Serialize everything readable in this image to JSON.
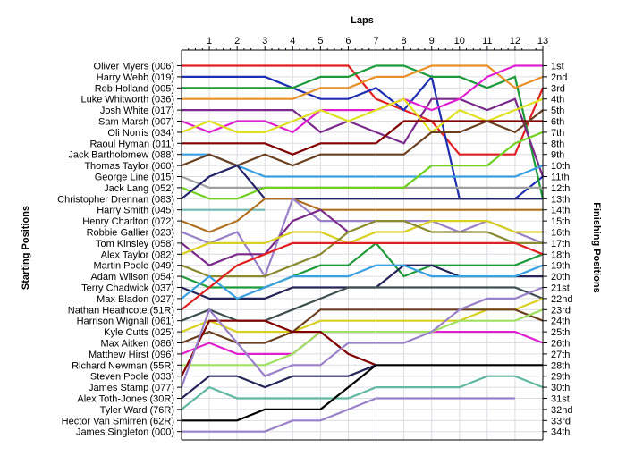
{
  "chart_data": {
    "type": "line",
    "title": "",
    "xlabel": "Laps",
    "ylabel_left": "Starting Positions",
    "ylabel_right": "Finishing Positions",
    "laps": [
      1,
      2,
      3,
      4,
      5,
      6,
      7,
      8,
      9,
      10,
      11,
      12,
      13
    ],
    "ylim": [
      1,
      34
    ],
    "y_inverted": true,
    "grid": true,
    "finishing_labels": [
      "1st",
      "2nd",
      "3rd",
      "4th",
      "5th",
      "6th",
      "7th",
      "8th",
      "9th",
      "10th",
      "11th",
      "12th",
      "13th",
      "14th",
      "15th",
      "16th",
      "17th",
      "18th",
      "19th",
      "20th",
      "21st",
      "22nd",
      "23rd",
      "24th",
      "25th",
      "26th",
      "27th",
      "28th",
      "29th",
      "30th",
      "31st",
      "32nd",
      "33rd",
      "34th"
    ],
    "series": [
      {
        "name": "Oliver Myers (006)",
        "color": "#e02020",
        "positions": [
          1,
          1,
          1,
          1,
          1,
          1,
          1,
          4,
          5,
          6,
          9,
          9,
          9,
          3
        ]
      },
      {
        "name": "Harry Webb (019)",
        "color": "#1f2fb0",
        "positions": [
          2,
          2,
          2,
          2,
          3,
          4,
          4,
          3,
          5,
          2,
          13,
          13,
          13,
          11
        ]
      },
      {
        "name": "Rob Holland (005)",
        "color": "#1f9a3a",
        "positions": [
          3,
          3,
          3,
          3,
          3,
          2,
          2,
          1,
          1,
          2,
          2,
          3,
          2,
          13
        ]
      },
      {
        "name": "Luke Whitworth (036)",
        "color": "#e8902a",
        "positions": [
          4,
          4,
          4,
          4,
          4,
          3,
          3,
          2,
          2,
          1,
          1,
          1,
          3,
          2
        ]
      },
      {
        "name": "Josh White (017)",
        "color": "#7a2a8a",
        "positions": [
          5,
          5,
          5,
          5,
          5,
          7,
          6,
          7,
          8,
          4,
          4,
          5,
          4,
          11
        ]
      },
      {
        "name": "Sam Marsh (007)",
        "color": "#e020d0",
        "positions": [
          6,
          7,
          6,
          6,
          7,
          5,
          5,
          5,
          4,
          5,
          4,
          2,
          1,
          1
        ]
      },
      {
        "name": "Oli Norris (034)",
        "color": "#e0e020",
        "positions": [
          7,
          6,
          7,
          7,
          6,
          5,
          6,
          5,
          4,
          7,
          5,
          6,
          5,
          4
        ]
      },
      {
        "name": "Raoul Hyman (011)",
        "color": "#800000",
        "positions": [
          8,
          8,
          8,
          8,
          9,
          8,
          8,
          8,
          6,
          6,
          6,
          6,
          6,
          6
        ]
      },
      {
        "name": "Jack Bartholomew (088)",
        "color": "#3aa0e0",
        "positions": [
          9,
          9,
          10,
          11,
          11,
          11,
          11,
          11,
          11,
          11,
          11,
          11,
          11,
          10
        ]
      },
      {
        "name": "Thomas Taylor (060)",
        "color": "#6a4020",
        "positions": [
          10,
          9,
          10,
          9,
          10,
          9,
          9,
          9,
          9,
          7,
          7,
          6,
          7,
          5
        ]
      },
      {
        "name": "George Line (015)",
        "color": "#a0a0a0",
        "positions": [
          11,
          12,
          12,
          12,
          12,
          12,
          12,
          12,
          12,
          12,
          12,
          12,
          12,
          12
        ]
      },
      {
        "name": "Jack Lang (052)",
        "color": "#70d020",
        "positions": [
          12,
          13,
          13,
          12,
          12,
          12,
          12,
          12,
          12,
          10,
          10,
          10,
          8,
          7
        ]
      },
      {
        "name": "Christopher Drennan (083)",
        "color": "#24246a",
        "positions": [
          13,
          11,
          10,
          13,
          13,
          13,
          13,
          13,
          13,
          13,
          13,
          13,
          13,
          13
        ]
      },
      {
        "name": "Harry Smith (045)",
        "color": "#70b8b0",
        "positions": [
          14,
          14,
          14,
          14
        ]
      },
      {
        "name": "Henry Charlton (072)",
        "color": "#b07020",
        "positions": [
          15,
          16,
          15,
          13,
          13,
          14,
          14,
          14,
          14,
          14,
          14,
          14,
          14,
          14
        ]
      },
      {
        "name": "Robbie Gallier (023)",
        "color": "#9a80c8",
        "positions": [
          16,
          17,
          16,
          20,
          13,
          15,
          15,
          15,
          15,
          15,
          16,
          15,
          16,
          17
        ]
      },
      {
        "name": "Tom Kinsley (058)",
        "color": "#7a2a8a",
        "positions": [
          17,
          19,
          18,
          18,
          15,
          14,
          16
        ]
      },
      {
        "name": "Alex Taylor (082)",
        "color": "#d8d020",
        "positions": [
          18,
          17,
          17,
          17,
          16,
          16,
          17,
          16,
          16,
          15,
          15,
          15,
          16,
          16
        ]
      },
      {
        "name": "Martin Poole (049)",
        "color": "#8a8a30",
        "positions": [
          19,
          20,
          20,
          20,
          19,
          18,
          16,
          15,
          15,
          16,
          16,
          16,
          17,
          17
        ]
      },
      {
        "name": "Adam Wilson (054)",
        "color": "#1f9a3a",
        "positions": [
          20,
          21,
          21,
          21,
          20,
          19,
          19,
          17,
          20,
          19,
          19,
          19,
          19,
          18
        ]
      },
      {
        "name": "Terry Chadwick (037)",
        "color": "#25255a",
        "positions": [
          21,
          22,
          22,
          22,
          21,
          21,
          21,
          21,
          19,
          19,
          20,
          20,
          20,
          20
        ]
      },
      {
        "name": "Max Bladon (027)",
        "color": "#3aa0e0",
        "positions": [
          22,
          20,
          22,
          21,
          20,
          20,
          20,
          19,
          19,
          20,
          20,
          20,
          20,
          19
        ]
      },
      {
        "name": "Nathan Heathcote (51R)",
        "color": "#e02020",
        "positions": [
          23,
          21,
          19,
          18,
          17,
          17,
          17,
          17,
          17,
          17,
          17,
          17,
          17,
          18
        ]
      },
      {
        "name": "Harrison Wignall (061)",
        "color": "#405050",
        "positions": [
          24,
          23,
          24,
          24,
          23,
          22,
          21,
          21,
          21,
          21,
          21,
          21,
          21,
          22
        ]
      },
      {
        "name": "Kyle Cutts (025)",
        "color": "#d8d020",
        "positions": [
          25,
          24,
          25,
          25,
          25,
          24,
          24,
          24,
          24,
          24,
          24,
          23,
          23,
          22
        ]
      },
      {
        "name": "Max Aitken (086)",
        "color": "#6a4020",
        "positions": [
          26,
          25,
          26,
          26,
          25,
          23,
          23,
          23,
          23,
          23,
          23,
          23,
          23,
          24
        ]
      },
      {
        "name": "Matthew Hirst (096)",
        "color": "#e020d0",
        "positions": [
          27,
          26,
          27,
          27,
          27,
          25,
          25,
          25,
          25,
          25,
          25,
          25,
          25,
          26
        ]
      },
      {
        "name": "Richard Newman (55R)",
        "color": "#a0e060",
        "positions": [
          28,
          28,
          28,
          28,
          27,
          25,
          25,
          25,
          25,
          25,
          24,
          24,
          24,
          23
        ]
      },
      {
        "name": "Steven Poole (033)",
        "color": "#800000",
        "positions": [
          29,
          24,
          24,
          24,
          25,
          25,
          27,
          28
        ]
      },
      {
        "name": "James Stamp (077)",
        "color": "#9a80c8",
        "positions": [
          30,
          23,
          26,
          29,
          28,
          28,
          26,
          26,
          26,
          25,
          23,
          22,
          22,
          21
        ]
      },
      {
        "name": "Alex Toth-Jones (30R)",
        "color": "#25255a",
        "positions": [
          31,
          29,
          29,
          30,
          29,
          29,
          29,
          28
        ]
      },
      {
        "name": "Tyler Ward (76R)",
        "color": "#60b8a0",
        "positions": [
          32,
          30,
          31,
          31,
          31,
          31,
          31,
          30,
          30,
          30,
          30,
          29,
          29,
          30
        ]
      },
      {
        "name": "Hector Van Smirren (62R)",
        "color": "#000000",
        "positions": [
          33,
          33,
          33,
          32,
          32,
          32,
          30,
          28,
          28,
          28,
          28,
          28,
          28,
          28
        ]
      },
      {
        "name": "James Singleton (000)",
        "color": "#9a80c8",
        "positions": [
          34,
          34,
          34,
          34,
          33,
          33,
          32,
          31,
          31,
          31,
          31,
          31,
          31
        ]
      }
    ]
  }
}
